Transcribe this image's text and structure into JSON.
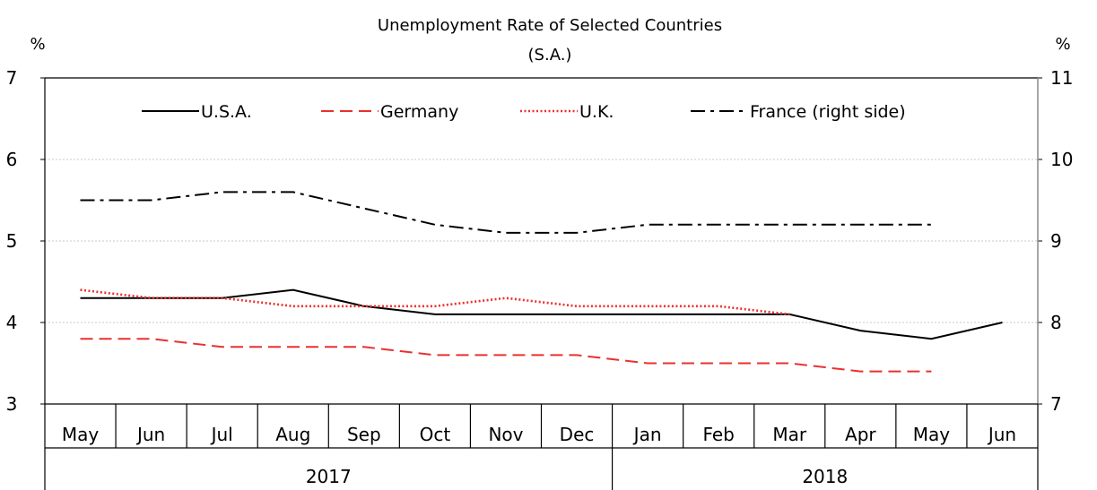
{
  "chart_data": {
    "type": "line",
    "title": "Unemployment Rate of Selected Countries",
    "subtitle": "(S.A.)",
    "ylabel_left": "%",
    "ylabel_right": "%",
    "ylim_left": [
      3,
      7
    ],
    "ylim_right": [
      7,
      11
    ],
    "yticks_left": [
      "3",
      "4",
      "5",
      "6",
      "7"
    ],
    "yticks_right": [
      "7",
      "8",
      "9",
      "10",
      "11"
    ],
    "grid": true,
    "legend_position": "top",
    "categories": [
      "May",
      "Jun",
      "Jul",
      "Aug",
      "Sep",
      "Oct",
      "Nov",
      "Dec",
      "Jan",
      "Feb",
      "Mar",
      "Apr",
      "May",
      "Jun"
    ],
    "year_groups": [
      {
        "label": "2017",
        "start": 0,
        "end": 7
      },
      {
        "label": "2018",
        "start": 8,
        "end": 13
      }
    ],
    "series": [
      {
        "name": "U.S.A.",
        "axis": "left",
        "style": "solid",
        "color": "#000000",
        "values": [
          4.3,
          4.3,
          4.3,
          4.4,
          4.2,
          4.1,
          4.1,
          4.1,
          4.1,
          4.1,
          4.1,
          3.9,
          3.8,
          4.0
        ]
      },
      {
        "name": "Germany",
        "axis": "left",
        "style": "dashed",
        "color": "#e8312f",
        "values": [
          3.8,
          3.8,
          3.7,
          3.7,
          3.7,
          3.6,
          3.6,
          3.6,
          3.5,
          3.5,
          3.5,
          3.4,
          3.4,
          null
        ]
      },
      {
        "name": "U.K.",
        "axis": "left",
        "style": "dotted",
        "color": "#e8312f",
        "values": [
          4.4,
          4.3,
          4.3,
          4.2,
          4.2,
          4.2,
          4.3,
          4.2,
          4.2,
          4.2,
          4.1,
          null,
          null,
          null
        ]
      },
      {
        "name": "France (right side)",
        "axis": "right",
        "style": "dashdot",
        "color": "#000000",
        "values": [
          9.5,
          9.5,
          9.6,
          9.6,
          9.4,
          9.2,
          9.1,
          9.1,
          9.2,
          9.2,
          9.2,
          9.2,
          9.2,
          null
        ]
      }
    ]
  }
}
